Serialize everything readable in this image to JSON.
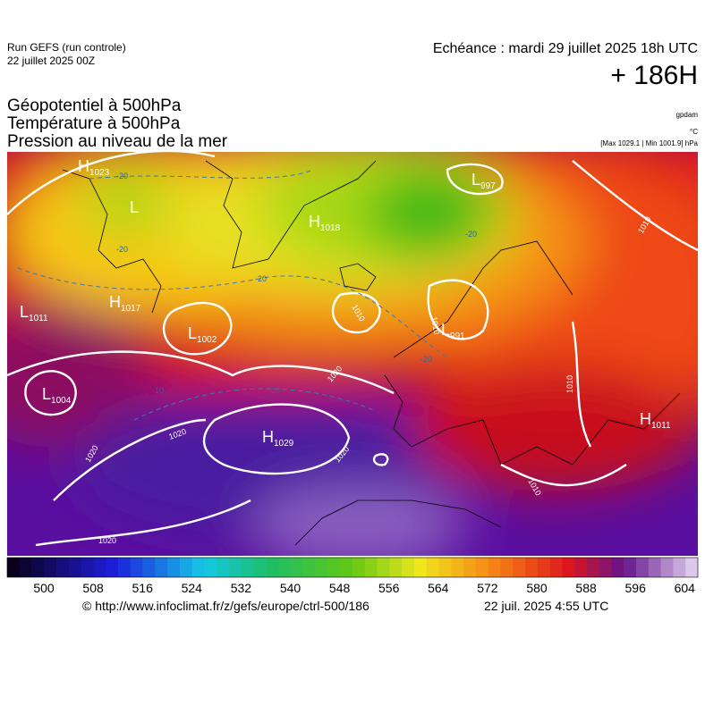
{
  "header": {
    "run": "Run GEFS (run controle)",
    "date": "22 juillet 2025 00Z",
    "echeance": "Echéance : mardi 29 juillet 2025 18h UTC",
    "lead": "+ 186H"
  },
  "fields": [
    "Géopotentiel à 500hPa",
    "Température à 500hPa",
    "Pression au niveau de la mer"
  ],
  "units": [
    "gpdam",
    "°C",
    "[Max 1029.1 | Min 1001.9] hPa"
  ],
  "map": {
    "centers": [
      {
        "type": "H",
        "value": "1023"
      },
      {
        "type": "L",
        "value": ""
      },
      {
        "type": "H",
        "value": "1018"
      },
      {
        "type": "L",
        "value": "997"
      },
      {
        "type": "H",
        "value": "1017"
      },
      {
        "type": "L",
        "value": "1011"
      },
      {
        "type": "L",
        "value": "1002"
      },
      {
        "type": "L",
        "value": "1004"
      },
      {
        "type": "H",
        "value": "1029"
      },
      {
        "type": "L",
        "value": "991"
      },
      {
        "type": "H",
        "value": "1011"
      }
    ],
    "isobar_labels": [
      "1010",
      "1020",
      "1020",
      "1020",
      "1020",
      "1020",
      "1010",
      "1010",
      "1010",
      "1010"
    ],
    "temperature_labels": [
      "-20",
      "-20",
      "-20",
      "-10",
      "-10",
      "-20",
      "-20"
    ]
  },
  "colorbar": {
    "labels": [
      "500",
      "508",
      "516",
      "524",
      "532",
      "540",
      "548",
      "556",
      "564",
      "572",
      "580",
      "588",
      "596",
      "604"
    ]
  },
  "footer": {
    "url": "© http://www.infoclimat.fr/z/gefs/europe/ctrl-500/186",
    "timestamp": "22 juil. 2025  4:55 UTC"
  }
}
